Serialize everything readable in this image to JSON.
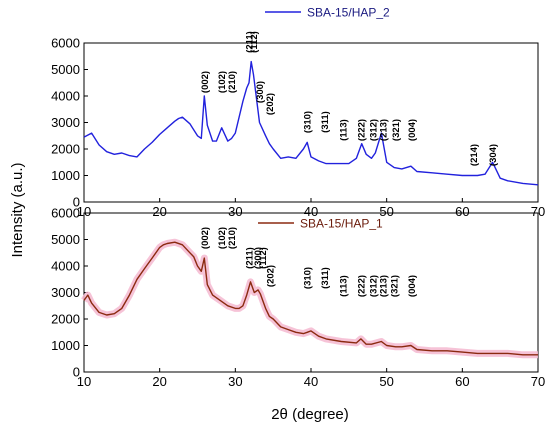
{
  "chart_data": [
    {
      "type": "line",
      "series": [
        {
          "name": "SBA-15/HAP_2",
          "color": "#2222dd"
        }
      ],
      "x": [
        10,
        11,
        12,
        13,
        14,
        15,
        16,
        17,
        18,
        19,
        20,
        21,
        22,
        22.5,
        23,
        24,
        25,
        25.5,
        25.9,
        26.3,
        27,
        27.5,
        28.2,
        29,
        29.5,
        30,
        31,
        31.5,
        31.8,
        32.1,
        32.4,
        32.8,
        33.2,
        34,
        34.5,
        35,
        36,
        37,
        38,
        39,
        39.5,
        40,
        41,
        42,
        43,
        44,
        45,
        46,
        46.7,
        47.3,
        48,
        48.5,
        49.3,
        50,
        51,
        52,
        53.2,
        54,
        56,
        58,
        60,
        62,
        63,
        64,
        65,
        66,
        68,
        70
      ],
      "y": [
        2450,
        2600,
        2150,
        1900,
        1800,
        1850,
        1750,
        1700,
        2000,
        2250,
        2550,
        2800,
        3050,
        3150,
        3200,
        2950,
        2500,
        2400,
        4000,
        2900,
        2300,
        2300,
        2800,
        2300,
        2400,
        2600,
        3800,
        4300,
        4500,
        5300,
        4800,
        3900,
        3000,
        2500,
        2200,
        2000,
        1650,
        1700,
        1650,
        2000,
        2250,
        1700,
        1550,
        1450,
        1450,
        1450,
        1450,
        1650,
        2200,
        1800,
        1650,
        1850,
        2600,
        1500,
        1300,
        1250,
        1350,
        1150,
        1100,
        1050,
        1000,
        1000,
        1050,
        1500,
        900,
        800,
        700,
        650
      ],
      "xlim": [
        10,
        70
      ],
      "ylim": [
        0,
        6000
      ],
      "yticks": [
        0,
        1000,
        2000,
        3000,
        4000,
        5000,
        6000
      ],
      "xticks": [
        10,
        20,
        30,
        40,
        50,
        60,
        70
      ],
      "legend_position": "top-center",
      "annotations": [
        {
          "label": "(002)",
          "x": 25.9
        },
        {
          "label": "(102)",
          "x": 28.2
        },
        {
          "label": "(210)",
          "x": 29.5
        },
        {
          "label": "(211)",
          "x": 31.8
        },
        {
          "label": "(112)",
          "x": 32.4
        },
        {
          "label": "(300)",
          "x": 33.2
        },
        {
          "label": "(202)",
          "x": 34.5
        },
        {
          "label": "(310)",
          "x": 39.5
        },
        {
          "label": "(311)",
          "x": 41.8
        },
        {
          "label": "(113)",
          "x": 44.2
        },
        {
          "label": "(222)",
          "x": 46.6
        },
        {
          "label": "(312)",
          "x": 48.2
        },
        {
          "label": "(213)",
          "x": 49.5
        },
        {
          "label": "(321)",
          "x": 51.2
        },
        {
          "label": "(004)",
          "x": 53.3
        },
        {
          "label": "(214)",
          "x": 61.5
        },
        {
          "label": "(304)",
          "x": 64.0
        }
      ]
    },
    {
      "type": "line",
      "series": [
        {
          "name": "SBA-15/HAP_1",
          "color": "#8b2a10",
          "band_color": "#f5b8d0"
        }
      ],
      "x": [
        10,
        10.5,
        11,
        12,
        13,
        14,
        15,
        16,
        17,
        18,
        19,
        20,
        20.5,
        21,
        22,
        23,
        24,
        24.5,
        25,
        25.5,
        25.9,
        26.3,
        27,
        28,
        29,
        30,
        30.5,
        31,
        31.5,
        32,
        32.5,
        33,
        33.3,
        34,
        34.5,
        35,
        36,
        37,
        38,
        39,
        39.5,
        40,
        41,
        42,
        44,
        46,
        46.6,
        47.3,
        48,
        49.3,
        50,
        51.2,
        52,
        53.2,
        54,
        56,
        58,
        60,
        62,
        64,
        66,
        68,
        70
      ],
      "y": [
        2700,
        2900,
        2600,
        2250,
        2150,
        2200,
        2400,
        2900,
        3500,
        3900,
        4300,
        4700,
        4800,
        4850,
        4900,
        4800,
        4500,
        4350,
        4000,
        3800,
        4300,
        3300,
        2900,
        2700,
        2500,
        2400,
        2400,
        2500,
        2900,
        3400,
        3000,
        3100,
        2950,
        2400,
        2100,
        2000,
        1700,
        1600,
        1500,
        1450,
        1500,
        1550,
        1350,
        1250,
        1150,
        1100,
        1250,
        1050,
        1050,
        1150,
        1000,
        950,
        950,
        1000,
        850,
        800,
        800,
        750,
        700,
        700,
        700,
        650,
        650
      ],
      "xlim": [
        10,
        70
      ],
      "ylim": [
        0,
        6000
      ],
      "yticks": [
        0,
        1000,
        2000,
        3000,
        4000,
        5000,
        6000
      ],
      "xticks": [
        10,
        20,
        30,
        40,
        50,
        60,
        70
      ],
      "legend_position": "top-center",
      "annotations": [
        {
          "label": "(002)",
          "x": 25.9
        },
        {
          "label": "(102)",
          "x": 28.2
        },
        {
          "label": "(210)",
          "x": 29.5
        },
        {
          "label": "(211)",
          "x": 31.8
        },
        {
          "label": "(300)",
          "x": 32.9
        },
        {
          "label": "(112)",
          "x": 33.6
        },
        {
          "label": "(202)",
          "x": 34.6
        },
        {
          "label": "(310)",
          "x": 39.5
        },
        {
          "label": "(311)",
          "x": 41.8
        },
        {
          "label": "(113)",
          "x": 44.2
        },
        {
          "label": "(222)",
          "x": 46.6
        },
        {
          "label": "(312)",
          "x": 48.2
        },
        {
          "label": "(213)",
          "x": 49.5
        },
        {
          "label": "(321)",
          "x": 51.0
        },
        {
          "label": "(004)",
          "x": 53.3
        }
      ]
    }
  ],
  "xlabel": "2θ (degree)",
  "ylabel": "Intensity (a.u.)"
}
